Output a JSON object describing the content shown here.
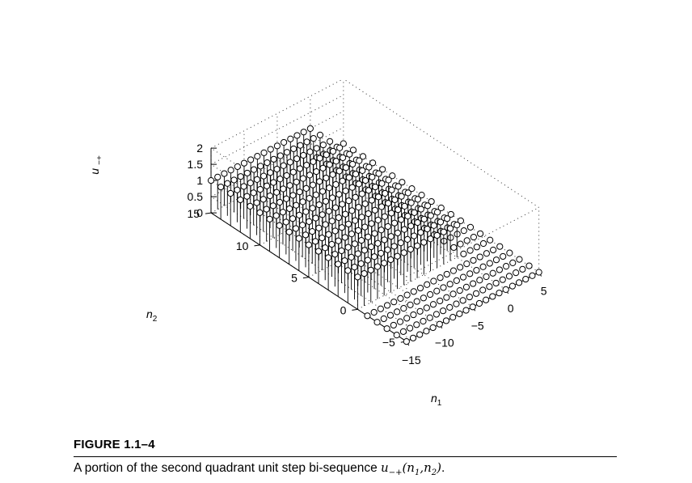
{
  "figure": {
    "label": "FIGURE 1.1–4",
    "caption_prefix": "A portion of the second quadrant unit step bi-sequence ",
    "caption_math": "u−+(n1,n2)",
    "caption_suffix": "."
  },
  "chart_data": {
    "type": "scatter",
    "subtype": "3d-stem",
    "definition": "u(n1,n2) = 1 for n1 <= 0 and n2 >= 0, else 0",
    "x": {
      "label": "n1",
      "range": [
        -15,
        5
      ],
      "ticks": [
        -15,
        -10,
        -5,
        0,
        5
      ],
      "tick_labels": [
        "−15",
        "−10",
        "−5",
        "0",
        "5"
      ]
    },
    "y": {
      "label": "n2",
      "range": [
        -5,
        15
      ],
      "ticks": [
        -5,
        0,
        5,
        10,
        15
      ],
      "tick_labels": [
        "−5",
        "0",
        "5",
        "10",
        "15"
      ]
    },
    "z": {
      "label": "u−+",
      "range": [
        0,
        2
      ],
      "ticks": [
        0,
        0.5,
        1,
        1.5,
        2
      ],
      "tick_labels": [
        "0",
        "0.5",
        "1",
        "1.5",
        "2"
      ]
    },
    "grid": true,
    "marker": "open-circle",
    "values_one_region": {
      "n1": [
        -15,
        0
      ],
      "n2": [
        0,
        15
      ],
      "value": 1
    },
    "values_zero_region": "all other integer points in [-15,5] x [-5,15]"
  }
}
